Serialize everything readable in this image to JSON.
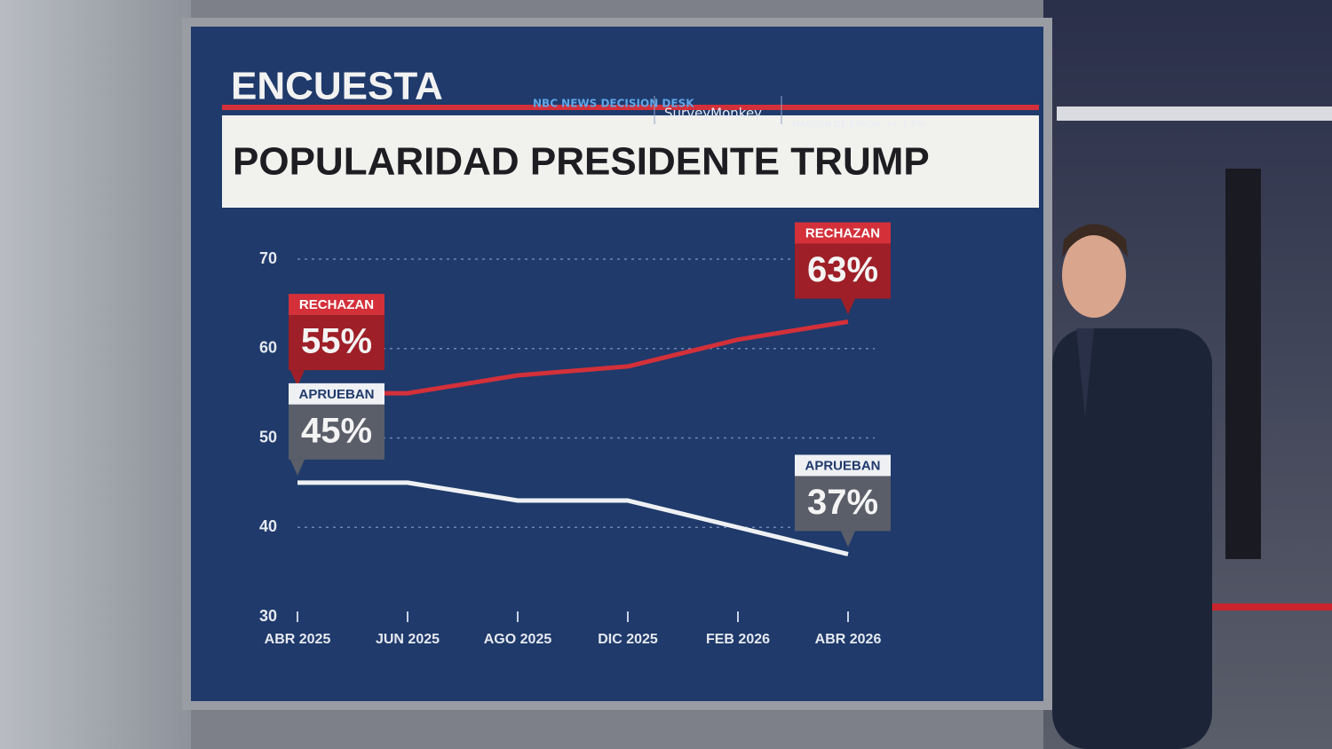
{
  "header": {
    "kicker": "ENCUESTA",
    "sources": [
      "NBC NEWS DECISION DESK",
      "SurveyMonkey"
    ],
    "margin_note": "MARGEN DE ERROR: +/- 1.8%"
  },
  "chart_data": {
    "type": "line",
    "title": "POPULARIDAD PRESIDENTE TRUMP",
    "categories": [
      "ABR 2025",
      "JUN 2025",
      "AGO 2025",
      "DIC 2025",
      "FEB 2026",
      "ABR 2026"
    ],
    "series": [
      {
        "name": "RECHAZAN",
        "color": "#d3303a",
        "values": [
          55,
          55,
          57,
          58,
          61,
          63
        ],
        "value_labels": [
          "55%",
          null,
          null,
          null,
          null,
          "63%"
        ]
      },
      {
        "name": "APRUEBAN",
        "color": "#eef0f4",
        "values": [
          45,
          45,
          43,
          43,
          40,
          37
        ],
        "value_labels": [
          "45%",
          null,
          null,
          null,
          null,
          "37%"
        ]
      }
    ],
    "ylim": [
      30,
      70
    ],
    "yticks": [
      30,
      40,
      50,
      60,
      70
    ],
    "grid": true
  }
}
